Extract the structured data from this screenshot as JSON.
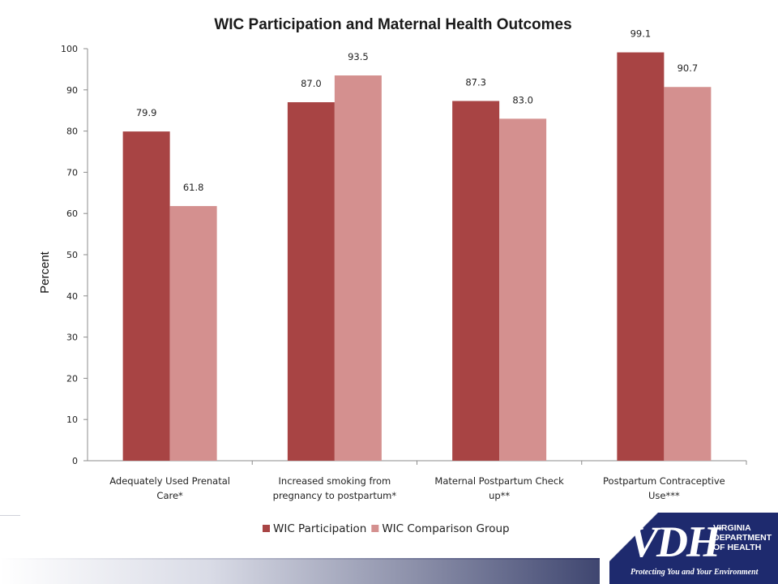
{
  "chart_data": {
    "type": "bar",
    "title": "WIC Participation and Maternal Health Outcomes",
    "ylabel": "Percent",
    "xlabel": "",
    "ylim": [
      0,
      100
    ],
    "yticks": [
      "0",
      "10",
      "20",
      "30",
      "40",
      "50",
      "60",
      "70",
      "80",
      "90",
      "100"
    ],
    "grid": false,
    "legend_position": "bottom",
    "categories": [
      [
        "Adequately Used Prenatal",
        "Care*"
      ],
      [
        "Increased smoking from",
        "pregnancy to postpartum*"
      ],
      [
        "Maternal Postpartum Check",
        "up**"
      ],
      [
        "Postpartum Contraceptive",
        "Use***"
      ]
    ],
    "series": [
      {
        "name": "WIC Participation",
        "color": "#a84444",
        "values": [
          79.9,
          87.0,
          87.3,
          99.1
        ],
        "labels": [
          "79.9",
          "87.0",
          "87.3",
          "99.1"
        ]
      },
      {
        "name": "WIC Comparison Group",
        "color": "#d4908f",
        "values": [
          61.8,
          93.5,
          83.0,
          90.7
        ],
        "labels": [
          "61.8",
          "93.5",
          "83.0",
          "90.7"
        ]
      }
    ]
  },
  "logo": {
    "mark": "VDH",
    "org_lines": [
      "VIRGINIA",
      "DEPARTMENT",
      "OF HEALTH"
    ],
    "tagline": "Protecting You and Your Environment"
  }
}
